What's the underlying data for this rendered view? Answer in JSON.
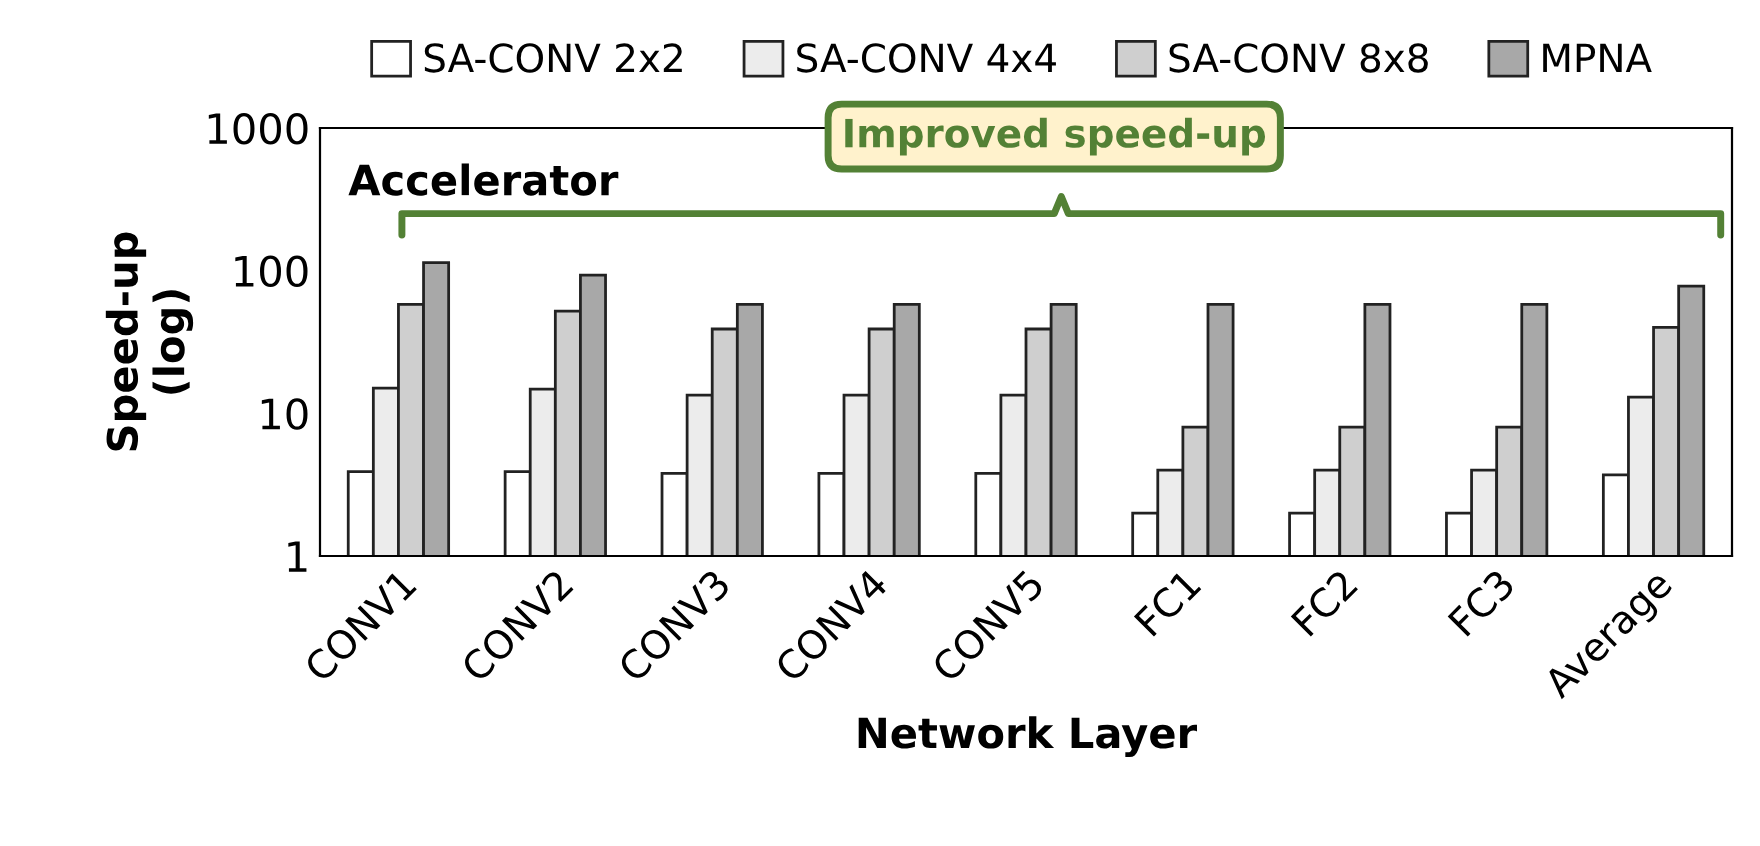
{
  "chart_data": {
    "type": "bar",
    "xlabel": "Network Layer",
    "ylabel": "Speed-up\n(log)",
    "log": "y",
    "ylim": [
      1,
      1000
    ],
    "yticks": [
      1,
      10,
      100,
      1000
    ],
    "grid": false,
    "legend": "top",
    "categories": [
      "CONV1",
      "CONV2",
      "CONV3",
      "CONV4",
      "CONV5",
      "FC1",
      "FC2",
      "FC3",
      "Average"
    ],
    "series": [
      {
        "name": "SA-CONV 2x2",
        "color": "#ffffff",
        "values": [
          3.9,
          3.9,
          3.8,
          3.8,
          3.8,
          2.0,
          2.0,
          2.0,
          3.7
        ]
      },
      {
        "name": "SA-CONV 4x4",
        "color": "#ececec",
        "values": [
          15,
          14.8,
          13.4,
          13.4,
          13.4,
          4.0,
          4.0,
          4.0,
          13
        ]
      },
      {
        "name": "SA-CONV 8x8",
        "color": "#cfcfcf",
        "values": [
          58,
          52,
          39,
          39,
          39,
          8.0,
          8.0,
          8.0,
          40
        ]
      },
      {
        "name": "MPNA",
        "color": "#a8a8a8",
        "values": [
          114,
          93,
          58,
          58,
          58,
          58,
          58,
          58,
          78
        ]
      }
    ],
    "annotations": [
      "Accelerator",
      "Improved speed-up"
    ]
  }
}
